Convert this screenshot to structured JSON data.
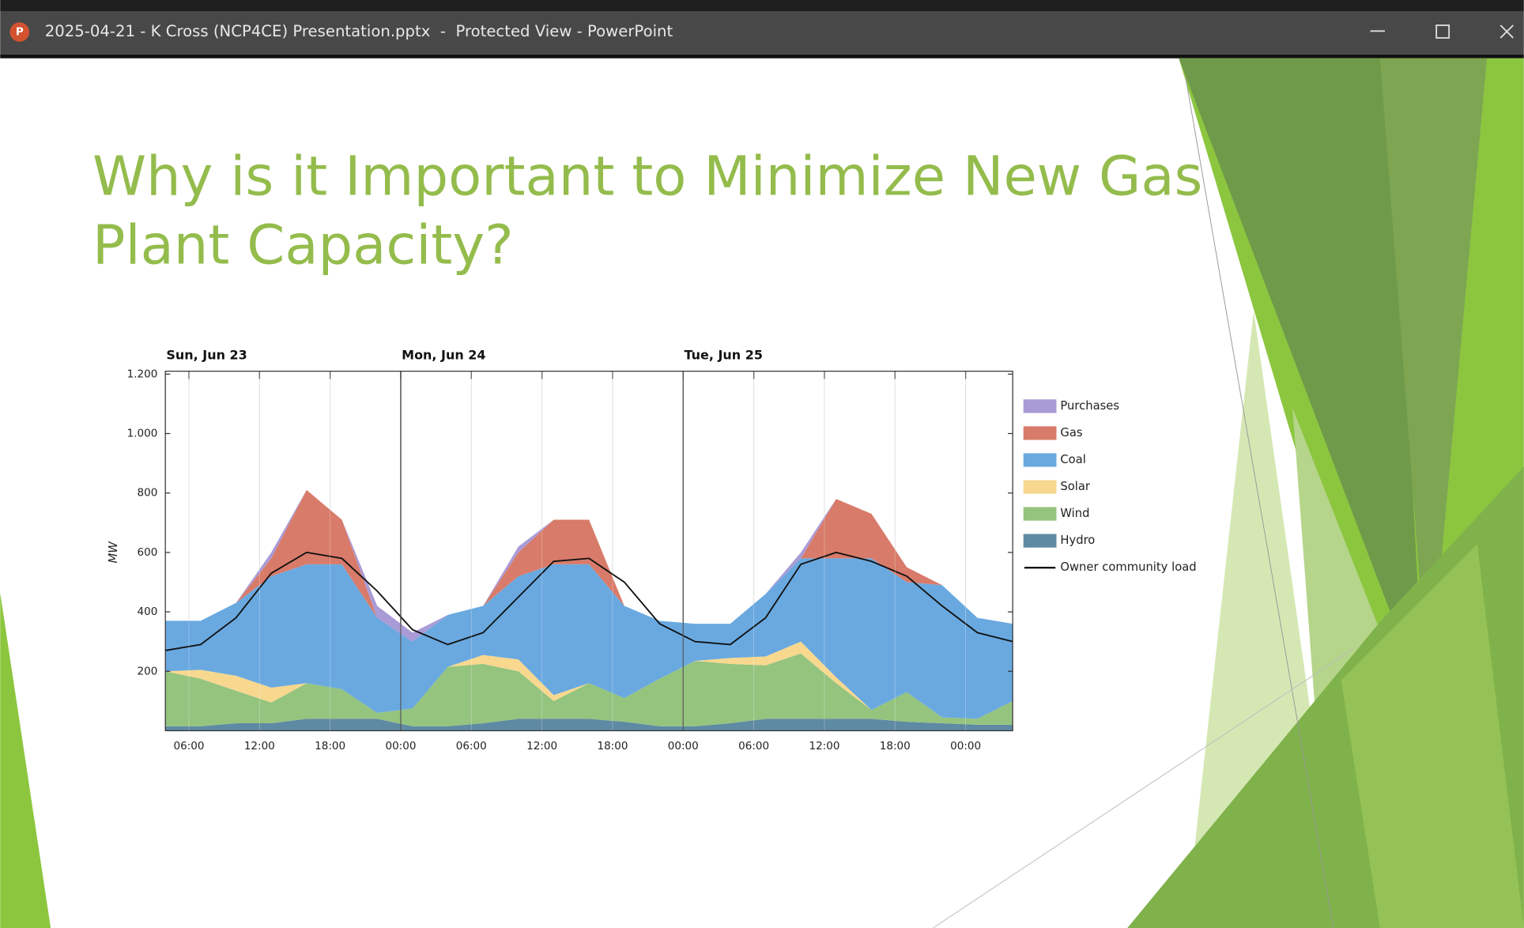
{
  "window": {
    "title": "2025-04-21 - K Cross (NCP4CE) Presentation.pptx  -  Protected View - PowerPoint"
  },
  "slide": {
    "title": [
      "Why is it Important to Minimize New Gas",
      "Plant Capacity?"
    ]
  },
  "chart_data": {
    "type": "area",
    "stacked": true,
    "ylabel": "MW",
    "x": [
      4,
      7,
      10,
      13,
      16,
      19,
      22,
      25,
      28,
      31,
      34,
      37,
      40,
      43,
      46,
      49,
      52,
      55,
      58,
      61,
      64,
      67,
      70,
      73,
      76
    ],
    "xlim": [
      4,
      76
    ],
    "xticks": [
      {
        "value": 6,
        "label": "06:00"
      },
      {
        "value": 12,
        "label": "12:00"
      },
      {
        "value": 18,
        "label": "18:00"
      },
      {
        "value": 24,
        "label": "00:00"
      },
      {
        "value": 30,
        "label": "06:00"
      },
      {
        "value": 36,
        "label": "12:00"
      },
      {
        "value": 42,
        "label": "18:00"
      },
      {
        "value": 48,
        "label": "00:00"
      },
      {
        "value": 54,
        "label": "06:00"
      },
      {
        "value": 60,
        "label": "12:00"
      },
      {
        "value": 66,
        "label": "18:00"
      },
      {
        "value": 72,
        "label": "00:00"
      }
    ],
    "day_labels": [
      {
        "value": 4,
        "label": "Sun, Jun 23"
      },
      {
        "value": 24,
        "label": "Mon, Jun 24"
      },
      {
        "value": 48,
        "label": "Tue, Jun 25"
      }
    ],
    "ylim": [
      0,
      1200
    ],
    "yticks": [
      200,
      400,
      600,
      800,
      {
        "value": 1000,
        "label": "1.000"
      },
      {
        "value": 1200,
        "label": "1.200"
      }
    ],
    "grid": true,
    "legend": "right",
    "series": [
      {
        "name": "Purchases",
        "color": "#a99bd6",
        "values": [
          0,
          0,
          0,
          20,
          0,
          0,
          40,
          30,
          0,
          0,
          20,
          0,
          0,
          0,
          0,
          0,
          0,
          0,
          20,
          0,
          0,
          0,
          0,
          0,
          0
        ]
      },
      {
        "name": "Gas",
        "color": "#d97b6a",
        "values": [
          0,
          0,
          0,
          60,
          250,
          150,
          0,
          0,
          0,
          0,
          80,
          150,
          150,
          0,
          0,
          0,
          0,
          0,
          0,
          200,
          150,
          50,
          0,
          0,
          0
        ]
      },
      {
        "name": "Coal",
        "color": "#6aa9e0",
        "values": [
          170,
          165,
          245,
          375,
          400,
          420,
          320,
          225,
          175,
          165,
          280,
          440,
          400,
          310,
          195,
          125,
          115,
          210,
          280,
          400,
          510,
          370,
          445,
          340,
          260
        ]
      },
      {
        "name": "Solar",
        "color": "#f7d88e",
        "values": [
          0,
          30,
          50,
          50,
          0,
          0,
          0,
          0,
          0,
          30,
          40,
          20,
          0,
          0,
          0,
          0,
          20,
          30,
          40,
          20,
          0,
          0,
          0,
          0,
          0
        ]
      },
      {
        "name": "Wind",
        "color": "#95c47f",
        "values": [
          185,
          160,
          110,
          70,
          120,
          100,
          20,
          60,
          200,
          200,
          160,
          60,
          120,
          80,
          160,
          220,
          200,
          180,
          220,
          120,
          30,
          100,
          20,
          20,
          80
        ]
      },
      {
        "name": "Hydro",
        "color": "#5f8aa3",
        "values": [
          15,
          15,
          25,
          25,
          40,
          40,
          40,
          15,
          15,
          25,
          40,
          40,
          40,
          30,
          15,
          15,
          25,
          40,
          40,
          40,
          40,
          30,
          25,
          20,
          20
        ]
      },
      {
        "name": "Owner community load",
        "type": "line",
        "color": "#111111",
        "values": [
          270,
          290,
          380,
          530,
          600,
          580,
          470,
          340,
          290,
          330,
          450,
          570,
          580,
          500,
          360,
          300,
          290,
          380,
          560,
          600,
          570,
          520,
          420,
          330,
          300
        ]
      }
    ]
  }
}
